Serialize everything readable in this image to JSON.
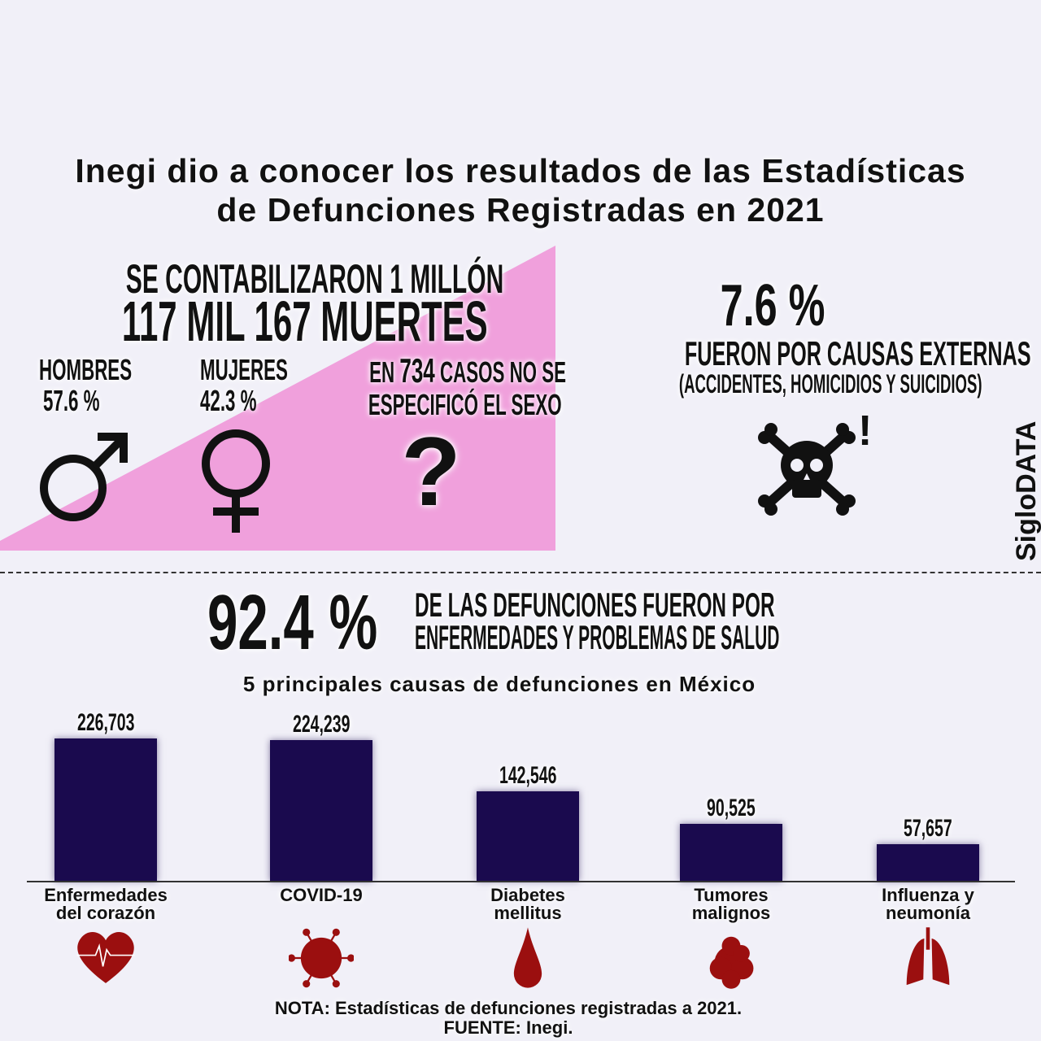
{
  "title_lines": [
    "Inegi dio a conocer los resultados de las Estadísticas",
    "de Defunciones Registradas en 2021"
  ],
  "deaths": {
    "line1": "SE CONTABILIZARON 1 MILLÓN",
    "line2": "117 MIL 167 MUERTES",
    "men_label": "HOMBRES",
    "men_value": "57.6 %",
    "women_label": "MUJERES",
    "women_value": "42.3 %",
    "unspecified_pre": "EN ",
    "unspecified_count": "734",
    "unspecified_post": " CASOS NO SE",
    "unspecified_line2": "ESPECIFICÓ EL SEXO",
    "question_mark": "?"
  },
  "external": {
    "percent": "7.6 %",
    "line1": "FUERON POR CAUSAS EXTERNAS",
    "line2": "(ACCIDENTES, HOMICIDIOS Y SUICIDIOS)",
    "exclamation": "!"
  },
  "brand": "SigloDATA",
  "disease": {
    "percent": "92.4 %",
    "line1": "DE LAS DEFUNCIONES FUERON POR",
    "line2": "ENFERMEDADES Y PROBLEMAS DE SALUD"
  },
  "colors": {
    "pink": "#f0a0dc",
    "bar": "#1a0a4e",
    "icon_red": "#9b0f0f"
  },
  "chart_data": {
    "type": "bar",
    "title": "5 principales causas de defunciones en México",
    "categories": [
      "Enfermedades del corazón",
      "COVID-19",
      "Diabetes mellitus",
      "Tumores malignos",
      "Influenza y neumonía"
    ],
    "category_lines": [
      [
        "Enfermedades",
        "del corazón"
      ],
      [
        "COVID-19",
        ""
      ],
      [
        "Diabetes",
        "mellitus"
      ],
      [
        "Tumores",
        "malignos"
      ],
      [
        "Influenza y",
        "neumonía"
      ]
    ],
    "values": [
      226703,
      224239,
      142546,
      90525,
      57657
    ],
    "value_labels": [
      "226,703",
      "224,239",
      "142,546",
      "90,525",
      "57,657"
    ],
    "icons": [
      "heart-icon",
      "virus-icon",
      "blood-drop-icon",
      "tumor-icon",
      "lungs-icon"
    ],
    "grid": false
  },
  "footer": {
    "note": "NOTA: Estadísticas de defunciones registradas a 2021.",
    "source": "FUENTE: Inegi."
  }
}
